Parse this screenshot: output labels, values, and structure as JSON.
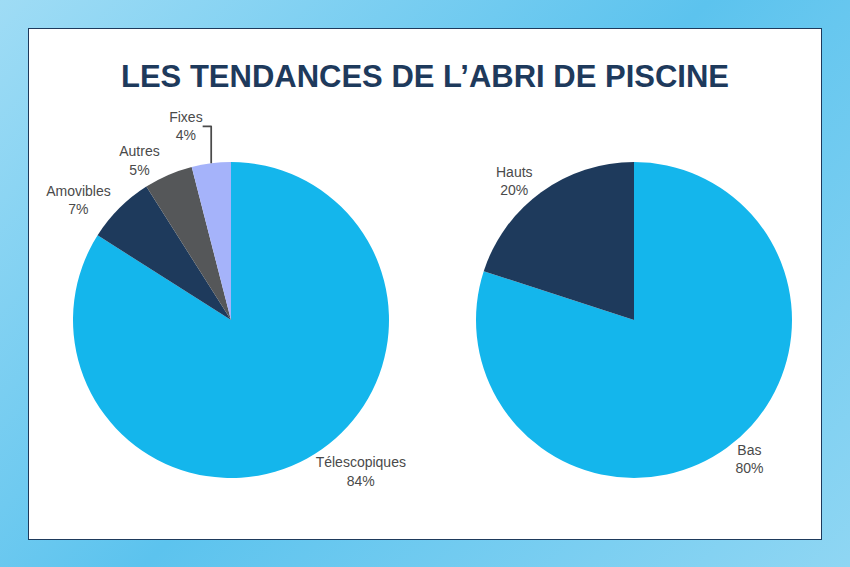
{
  "title": "LES TENDANCES DE L’ABRI DE PISCINE",
  "chart_data": [
    {
      "type": "pie",
      "categories": [
        "Télescopiques",
        "Amovibles",
        "Autres",
        "Fixes"
      ],
      "values": [
        84,
        7,
        5,
        4
      ],
      "value_labels": [
        "84%",
        "7%",
        "5%",
        "4%"
      ],
      "colors": [
        "#14b6ec",
        "#1e3a5c",
        "#555759",
        "#a5b3fa"
      ],
      "data_labels": true
    },
    {
      "type": "pie",
      "categories": [
        "Bas",
        "Hauts"
      ],
      "values": [
        80,
        20
      ],
      "value_labels": [
        "80%",
        "20%"
      ],
      "colors": [
        "#14b6ec",
        "#1e3a5c"
      ],
      "data_labels": true
    }
  ]
}
